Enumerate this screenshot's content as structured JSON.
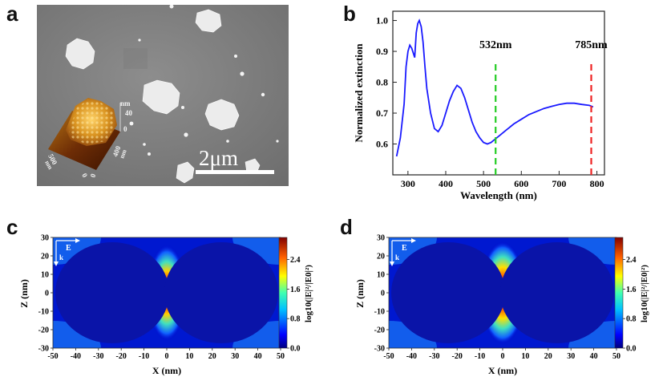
{
  "panels": {
    "a": "a",
    "b": "b",
    "c": "c",
    "d": "d"
  },
  "sem": {
    "scale_bar": "2μm",
    "afm_inset": {
      "z_unit": "nm",
      "z_ticks": [
        "40",
        "0"
      ],
      "x_ticks": [
        "500",
        "0"
      ],
      "x_unit": "nm",
      "y_ticks": [
        "400",
        "0"
      ],
      "y_unit": "nm"
    }
  },
  "chart_data": [
    {
      "type": "line",
      "panel": "b",
      "title": "",
      "xlabel": "Wavelength (nm)",
      "ylabel": "Normalized extinction",
      "xlim": [
        260,
        820
      ],
      "ylim": [
        0.5,
        1.03
      ],
      "x_ticks": [
        "300",
        "400",
        "500",
        "600",
        "700",
        "800"
      ],
      "y_ticks": [
        "0.6",
        "0.7",
        "0.8",
        "0.9",
        "1.0"
      ],
      "series": [
        {
          "name": "extinction",
          "color": "#1a1aff",
          "x": [
            270,
            280,
            290,
            295,
            300,
            305,
            310,
            318,
            322,
            326,
            330,
            335,
            340,
            345,
            350,
            360,
            370,
            380,
            390,
            400,
            410,
            420,
            430,
            440,
            450,
            460,
            470,
            480,
            490,
            500,
            510,
            520,
            530,
            540,
            560,
            580,
            600,
            620,
            640,
            660,
            680,
            700,
            720,
            740,
            760,
            780,
            790
          ],
          "y": [
            0.56,
            0.62,
            0.73,
            0.85,
            0.9,
            0.92,
            0.91,
            0.88,
            0.96,
            0.99,
            1.0,
            0.98,
            0.93,
            0.85,
            0.78,
            0.7,
            0.65,
            0.64,
            0.66,
            0.7,
            0.74,
            0.77,
            0.79,
            0.78,
            0.75,
            0.71,
            0.67,
            0.64,
            0.62,
            0.605,
            0.6,
            0.605,
            0.615,
            0.625,
            0.645,
            0.665,
            0.68,
            0.695,
            0.705,
            0.715,
            0.722,
            0.728,
            0.732,
            0.732,
            0.728,
            0.725,
            0.72
          ]
        }
      ],
      "annotations": [
        {
          "label": "532nm",
          "x": 532,
          "color": "#22cc22",
          "style": "dashed"
        },
        {
          "label": "785nm",
          "x": 785,
          "color": "#ee2222",
          "style": "dashed"
        }
      ]
    },
    {
      "type": "heatmap",
      "panel": "c",
      "xlabel": "X (nm)",
      "ylabel": "Z (nm)",
      "xlim": [
        -50,
        50
      ],
      "ylim": [
        -30,
        30
      ],
      "x_ticks": [
        "-50",
        "-40",
        "-30",
        "-20",
        "-10",
        "0",
        "10",
        "20",
        "30",
        "40",
        "50"
      ],
      "y_ticks": [
        "30",
        "20",
        "10",
        "0",
        "-10",
        "-20",
        "-30"
      ],
      "colorbar": {
        "label": "log10(|E|²/|E0|²)",
        "ticks": [
          "2.4",
          "1.6",
          "0.8",
          "0.0"
        ],
        "range": [
          0.0,
          3.0
        ]
      },
      "field_labels": {
        "e": "E",
        "k": "k"
      },
      "particles": [
        {
          "cx": -25,
          "rx": 23,
          "rz": 26
        },
        {
          "cx": 25,
          "rx": 23,
          "rz": 26
        }
      ],
      "gap_nm": 4
    },
    {
      "type": "heatmap",
      "panel": "d",
      "xlabel": "X (nm)",
      "ylabel": "Z (nm)",
      "xlim": [
        -50,
        50
      ],
      "ylim": [
        -30,
        30
      ],
      "x_ticks": [
        "-50",
        "-40",
        "-30",
        "-20",
        "-10",
        "0",
        "10",
        "20",
        "30",
        "40",
        "50"
      ],
      "y_ticks": [
        "30",
        "20",
        "10",
        "0",
        "-10",
        "-20",
        "-30"
      ],
      "colorbar": {
        "label": "log10(|E|²/|E0|²)",
        "ticks": [
          "2.4",
          "1.6",
          "0.8",
          "0.0"
        ],
        "range": [
          0.0,
          3.0
        ]
      },
      "field_labels": {
        "e": "E",
        "k": "k"
      },
      "particles": [
        {
          "cx": -25,
          "rx": 23,
          "rz": 26
        },
        {
          "cx": 25,
          "rx": 23,
          "rz": 26
        }
      ],
      "gap_nm": 4
    }
  ]
}
